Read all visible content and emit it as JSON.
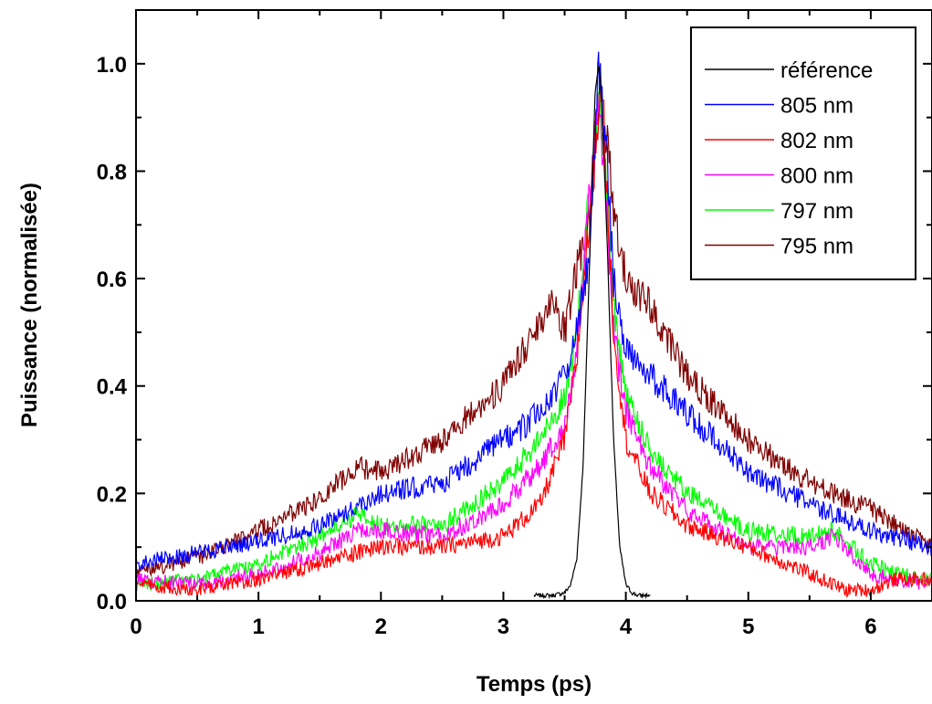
{
  "chart_data": {
    "type": "line",
    "xlabel": "Temps (ps)",
    "ylabel": "Puissance (normalisée)",
    "xlim": [
      0,
      6.5
    ],
    "ylim": [
      0,
      1.1
    ],
    "x_ticks": [
      "0",
      "1",
      "2",
      "3",
      "4",
      "5",
      "6"
    ],
    "y_ticks": [
      "0.0",
      "0.2",
      "0.4",
      "0.6",
      "0.8",
      "1.0"
    ],
    "grid": false,
    "legend_position": "top-right",
    "series": [
      {
        "name": "référence",
        "color": "#000000",
        "x": [
          3.25,
          3.4,
          3.5,
          3.55,
          3.6,
          3.65,
          3.7,
          3.75,
          3.78,
          3.8,
          3.85,
          3.9,
          3.95,
          4.0,
          4.05,
          4.1,
          4.2
        ],
        "y": [
          0.01,
          0.01,
          0.015,
          0.03,
          0.08,
          0.25,
          0.6,
          0.95,
          1.0,
          0.95,
          0.65,
          0.3,
          0.1,
          0.03,
          0.015,
          0.01,
          0.01
        ]
      },
      {
        "name": "805 nm",
        "color": "#0000ff",
        "x": [
          0,
          0.3,
          0.5,
          1.0,
          1.5,
          2.0,
          2.5,
          3.0,
          3.2,
          3.4,
          3.5,
          3.6,
          3.7,
          3.78,
          3.85,
          3.9,
          4.0,
          4.2,
          4.5,
          5.0,
          5.5,
          6.0,
          6.5
        ],
        "y": [
          0.07,
          0.08,
          0.09,
          0.11,
          0.14,
          0.2,
          0.22,
          0.3,
          0.33,
          0.38,
          0.42,
          0.5,
          0.65,
          1.0,
          0.8,
          0.6,
          0.47,
          0.42,
          0.35,
          0.24,
          0.18,
          0.13,
          0.1
        ]
      },
      {
        "name": "802 nm",
        "color": "#ff0000",
        "x": [
          0,
          0.5,
          1.0,
          1.5,
          1.8,
          2.0,
          2.5,
          3.0,
          3.3,
          3.5,
          3.6,
          3.7,
          3.8,
          3.85,
          3.9,
          4.0,
          4.2,
          4.5,
          5.0,
          5.5,
          5.8,
          6.0,
          6.2,
          6.5
        ],
        "y": [
          0.03,
          0.02,
          0.04,
          0.07,
          0.09,
          0.1,
          0.1,
          0.12,
          0.18,
          0.3,
          0.45,
          0.7,
          0.98,
          0.75,
          0.5,
          0.3,
          0.2,
          0.14,
          0.1,
          0.05,
          0.02,
          0.02,
          0.04,
          0.04
        ]
      },
      {
        "name": "800 nm",
        "color": "#ff00ff",
        "x": [
          0,
          0.5,
          1.0,
          1.5,
          1.8,
          2.0,
          2.5,
          3.0,
          3.3,
          3.5,
          3.6,
          3.7,
          3.78,
          3.85,
          3.9,
          4.0,
          4.2,
          4.5,
          5.0,
          5.5,
          5.7,
          6.0,
          6.2,
          6.5
        ],
        "y": [
          0.04,
          0.03,
          0.05,
          0.09,
          0.13,
          0.13,
          0.12,
          0.18,
          0.25,
          0.33,
          0.45,
          0.75,
          0.93,
          0.7,
          0.5,
          0.35,
          0.25,
          0.17,
          0.1,
          0.1,
          0.12,
          0.05,
          0.04,
          0.03
        ]
      },
      {
        "name": "797 nm",
        "color": "#00ff00",
        "x": [
          0,
          0.5,
          1.0,
          1.5,
          1.8,
          2.0,
          2.5,
          3.0,
          3.3,
          3.5,
          3.6,
          3.7,
          3.78,
          3.85,
          3.9,
          4.0,
          4.2,
          4.5,
          5.0,
          5.5,
          5.7,
          6.0,
          6.2,
          6.5
        ],
        "y": [
          0.03,
          0.04,
          0.07,
          0.12,
          0.16,
          0.14,
          0.14,
          0.22,
          0.3,
          0.38,
          0.5,
          0.75,
          0.96,
          0.75,
          0.55,
          0.38,
          0.28,
          0.2,
          0.13,
          0.12,
          0.13,
          0.07,
          0.05,
          0.04
        ]
      },
      {
        "name": "795 nm",
        "color": "#800000",
        "x": [
          0,
          0.3,
          0.5,
          1.0,
          1.5,
          1.8,
          2.0,
          2.5,
          3.0,
          3.3,
          3.4,
          3.5,
          3.6,
          3.7,
          3.78,
          3.85,
          3.9,
          4.0,
          4.2,
          4.5,
          5.0,
          5.5,
          6.0,
          6.5
        ],
        "y": [
          0.05,
          0.07,
          0.08,
          0.13,
          0.19,
          0.25,
          0.24,
          0.3,
          0.4,
          0.52,
          0.57,
          0.5,
          0.62,
          0.7,
          0.95,
          0.85,
          0.72,
          0.6,
          0.55,
          0.42,
          0.3,
          0.22,
          0.17,
          0.1
        ]
      }
    ]
  }
}
